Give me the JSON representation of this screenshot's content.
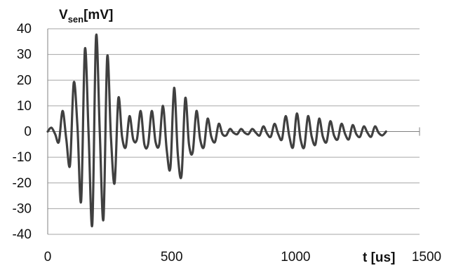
{
  "chart_data": {
    "type": "line",
    "ylabel_main": "V",
    "ylabel_sub": "sen",
    "ylabel_unit": "[mV]",
    "xlabel": "t [us]",
    "xlim": [
      0,
      1500
    ],
    "ylim": [
      -40,
      40
    ],
    "x_ticks": [
      0,
      500,
      1000,
      1500
    ],
    "y_ticks": [
      40,
      30,
      20,
      10,
      0,
      -10,
      -20,
      -30,
      -40
    ],
    "grid_horizontal": true,
    "grid_vertical": false,
    "line_color": "#404040",
    "grid_color": "#a6a6a6",
    "series": [
      {
        "x": [
          0,
          15,
          30,
          45,
          60,
          75,
          90,
          105,
          120,
          135,
          150,
          165,
          180,
          195,
          210,
          225,
          240,
          255,
          270,
          285,
          300,
          315,
          330,
          345,
          360,
          375,
          390,
          405,
          420,
          435,
          450,
          465,
          480,
          495,
          510,
          525,
          540,
          555,
          570,
          585,
          600,
          615,
          630,
          645,
          660,
          675,
          690,
          705,
          720,
          735,
          750,
          765,
          780,
          795,
          810,
          825,
          840,
          855,
          870,
          885,
          900,
          915,
          930,
          945,
          960,
          975,
          990,
          1005,
          1020,
          1035,
          1050,
          1065,
          1080,
          1095,
          1110,
          1125,
          1140,
          1155,
          1170,
          1185,
          1200,
          1215,
          1230,
          1245,
          1260,
          1275,
          1290,
          1305,
          1320,
          1335,
          1350,
          1365
        ],
        "y": [
          0,
          1.5,
          -1,
          -4,
          8,
          -3,
          -13,
          19,
          2,
          -27,
          32,
          -1,
          -36,
          37,
          0,
          -34,
          29,
          -2,
          -20,
          13,
          -2,
          -6,
          6,
          -3,
          -3,
          8,
          -5,
          -5,
          8,
          -4,
          -5,
          10,
          -7,
          -14,
          17,
          -9,
          -17,
          13,
          -5,
          -8,
          8,
          -3,
          -6,
          5,
          -2,
          -4,
          3,
          -1,
          -1.5,
          1,
          -0.5,
          -1,
          1,
          -0.5,
          -1,
          1,
          -0.5,
          -1.5,
          2,
          -0.8,
          -2,
          3,
          -1,
          -3,
          6,
          -2,
          -6,
          7,
          -3,
          -6,
          6,
          -2,
          -5,
          5,
          -2,
          -4,
          4,
          -1.5,
          -3,
          3,
          -1,
          -3,
          2.5,
          -1,
          -2,
          2,
          -0.5,
          -2,
          2,
          -0.5,
          -1.5,
          0
        ]
      }
    ]
  }
}
